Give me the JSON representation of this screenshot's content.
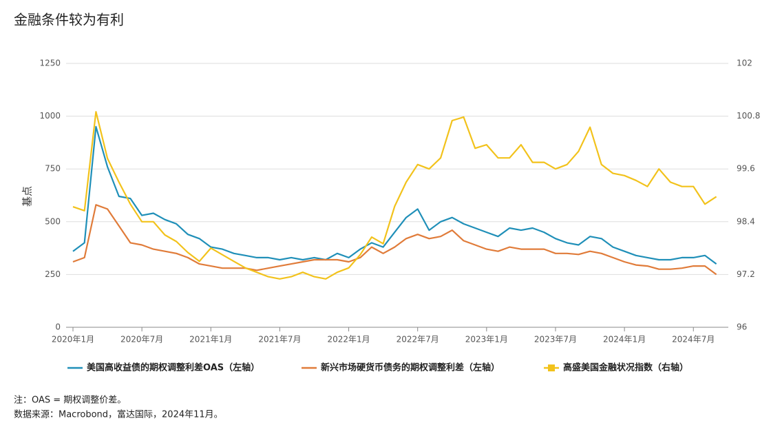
{
  "chart_data": {
    "type": "line",
    "title": "金融条件较为有利",
    "y_label": "基点",
    "notes": [
      "注：OAS = 期权调整价差。",
      "数据来源：Macrobond，富达国际，2024年11月。"
    ],
    "categories": [
      "2020年1月",
      null,
      null,
      null,
      null,
      null,
      "2020年7月",
      null,
      null,
      null,
      null,
      null,
      "2021年1月",
      null,
      null,
      null,
      null,
      null,
      "2021年7月",
      null,
      null,
      null,
      null,
      null,
      "2022年1月",
      null,
      null,
      null,
      null,
      null,
      "2022年7月",
      null,
      null,
      null,
      null,
      null,
      "2023年1月",
      null,
      null,
      null,
      null,
      null,
      "2023年7月",
      null,
      null,
      null,
      null,
      null,
      "2024年1月",
      null,
      null,
      null,
      null,
      null,
      "2024年7月",
      null,
      null
    ],
    "ylim": [
      0,
      1250
    ],
    "yticks": [
      0,
      250,
      500,
      750,
      1000,
      1250
    ],
    "y2lim": [
      96,
      102
    ],
    "y2ticks": [
      96,
      97.2,
      98.4,
      99.6,
      100.8,
      102
    ],
    "grid": true,
    "series": [
      {
        "name": "美国高收益债的期权调整利差OAS（左轴）",
        "color": "#1f8fb8",
        "values": [
          360,
          400,
          950,
          760,
          620,
          610,
          530,
          540,
          510,
          490,
          440,
          420,
          380,
          370,
          350,
          340,
          330,
          330,
          320,
          330,
          320,
          330,
          320,
          350,
          330,
          370,
          400,
          380,
          450,
          520,
          560,
          460,
          500,
          520,
          490,
          470,
          450,
          430,
          470,
          460,
          470,
          450,
          420,
          400,
          390,
          430,
          420,
          380,
          360,
          340,
          330,
          320,
          320,
          330,
          330,
          340,
          300
        ]
      },
      {
        "name": "新兴市场硬货币债务的期权调整利差（左轴）",
        "color": "#e07b39",
        "values": [
          310,
          330,
          580,
          560,
          480,
          400,
          390,
          370,
          360,
          350,
          330,
          300,
          290,
          280,
          280,
          280,
          270,
          280,
          290,
          300,
          310,
          320,
          320,
          320,
          310,
          330,
          380,
          350,
          380,
          420,
          440,
          420,
          430,
          460,
          410,
          390,
          370,
          360,
          380,
          370,
          370,
          370,
          350,
          350,
          345,
          360,
          350,
          330,
          310,
          295,
          290,
          275,
          275,
          280,
          290,
          290,
          250
        ]
      },
      {
        "name": "高盛美国金融状况指数（右轴）",
        "color": "#f2c21b",
        "axis": "y2",
        "marker": "square",
        "values": [
          98.74,
          98.65,
          100.9,
          99.84,
          99.3,
          98.8,
          98.4,
          98.4,
          98.1,
          97.95,
          97.7,
          97.5,
          97.8,
          97.65,
          97.5,
          97.35,
          97.25,
          97.15,
          97.1,
          97.15,
          97.25,
          97.15,
          97.1,
          97.25,
          97.35,
          97.65,
          98.05,
          97.9,
          98.75,
          99.3,
          99.7,
          99.6,
          99.85,
          100.7,
          100.78,
          100.07,
          100.15,
          99.85,
          99.85,
          100.15,
          99.75,
          99.75,
          99.6,
          99.7,
          100.0,
          100.55,
          99.7,
          99.5,
          99.45,
          99.34,
          99.2,
          99.6,
          99.3,
          99.2,
          99.2,
          98.8,
          98.97
        ]
      }
    ]
  }
}
